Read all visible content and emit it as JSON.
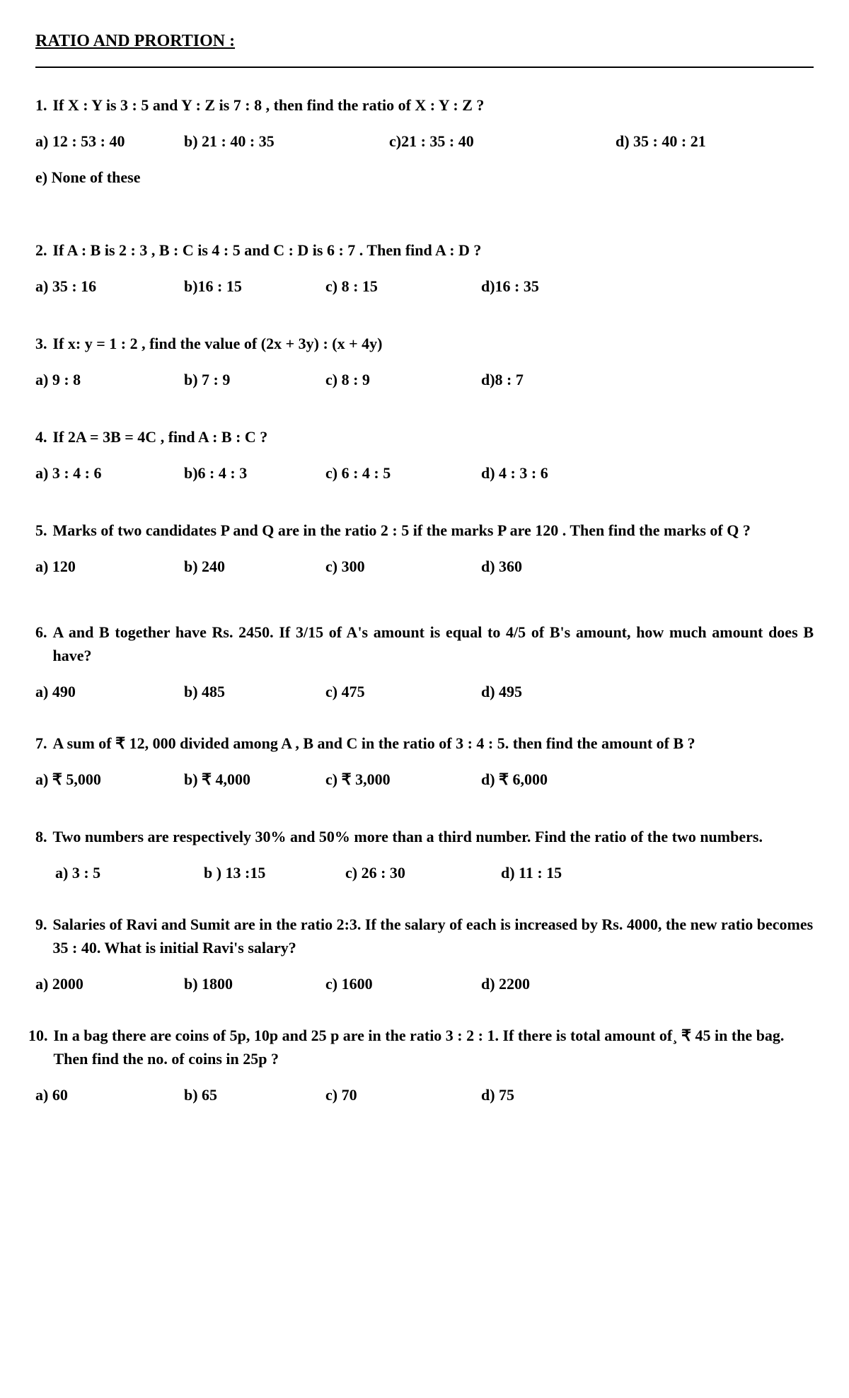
{
  "title": "RATIO AND PRORTION :",
  "questions": [
    {
      "num": "1.",
      "text": "If X : Y is 3 : 5 and Y : Z is 7 : 8 , then find the ratio of X : Y : Z ?",
      "options": {
        "a": "a)  12 : 53 : 40",
        "b": "b) 21 : 40 : 35",
        "c": "c)21 : 35 : 40",
        "d": "d) 35 : 40 : 21"
      },
      "e": "e) None of these",
      "widths": [
        210,
        290,
        320,
        200
      ]
    },
    {
      "num": "2.",
      "text": "If A : B is 2 : 3 , B : C is 4 : 5 and C : D is 6 : 7 . Then find A : D ?",
      "options": {
        "a": "a)  35 : 16",
        "b": "b)16 : 15",
        "c": "c) 8 : 15",
        "d": "d)16 : 35"
      },
      "widths": [
        210,
        200,
        220,
        200
      ]
    },
    {
      "num": "3.",
      "text": "If x: y = 1 : 2 , find the value of (2x + 3y) : (x + 4y)",
      "options": {
        "a": "a)  9 : 8",
        "b": "b) 7 : 9",
        "c": "c) 8 : 9",
        "d": "d)8 : 7"
      },
      "widths": [
        210,
        200,
        220,
        200
      ]
    },
    {
      "num": "4.",
      "text": "If 2A = 3B = 4C , find A : B : C ?",
      "options": {
        "a": "a)  3 : 4 : 6",
        "b": "b)6 : 4 : 3",
        "c": "c) 6 : 4 : 5",
        "d": "d) 4 : 3 : 6"
      },
      "widths": [
        210,
        200,
        220,
        200
      ]
    },
    {
      "num": "5.",
      "text": "Marks of two candidates P and Q are in the ratio 2 : 5 if the marks P are 120 . Then find the marks of Q ?",
      "options": {
        "a": "a)  120",
        "b": "b) 240",
        "c": "c) 300",
        "d": "d) 360"
      },
      "widths": [
        210,
        200,
        220,
        200
      ],
      "large_mb": true
    },
    {
      "num": "6.",
      "text": "A and B together have Rs. 2450. If 3/15 of A's amount is equal to 4/5 of B's amount, how much amount does B have?",
      "justify": true,
      "options": {
        "a": "a)  490",
        "b": "b) 485",
        "c": "c) 475",
        "d": "d) 495"
      },
      "widths": [
        210,
        200,
        220,
        200
      ],
      "tight": true
    },
    {
      "num": "7.",
      "text": "A sum of ₹ 12, 000 divided among A , B and C in the ratio of 3 : 4 : 5. then find the amount of B ?",
      "options": {
        "a": "a)  ₹ 5,000",
        "b": "b) ₹ 4,000",
        "c": "c) ₹ 3,000",
        "d": "d) ₹ 6,000"
      },
      "widths": [
        210,
        200,
        220,
        200
      ]
    },
    {
      "num": "8.",
      "text": "Two numbers are respectively 30% and 50% more than a third number. Find the ratio of the two numbers.",
      "options": {
        "a": "a)  3 : 5",
        "b": "b ) 13 :15",
        "c": "c) 26 : 30",
        "d": "d) 11 : 15"
      },
      "widths": [
        210,
        200,
        220,
        200
      ],
      "indent": true,
      "tight": true
    },
    {
      "num": "9.",
      "text": "Salaries of Ravi and Sumit are in the ratio 2:3. If the salary of each is increased by Rs. 4000, the new ratio becomes 35 : 40. What is initial Ravi's salary?",
      "options": {
        "a": "a)  2000",
        "b": "b) 1800",
        "c": "c) 1600",
        "d": "d) 2200"
      },
      "widths": [
        210,
        200,
        220,
        200
      ],
      "tight": true
    },
    {
      "num": "10.",
      "text": "In a bag there are coins of 5p, 10p and 25 p are in the ratio 3 : 2 : 1. If there is total amount of¸ ₹ 45 in the bag. Then find the no. of coins in 25p ?",
      "options": {
        "a": "a)  60",
        "b": "b) 65",
        "c": "c) 70",
        "d": "d) 75"
      },
      "widths": [
        210,
        200,
        220,
        200
      ],
      "no_num_indent": true
    }
  ]
}
